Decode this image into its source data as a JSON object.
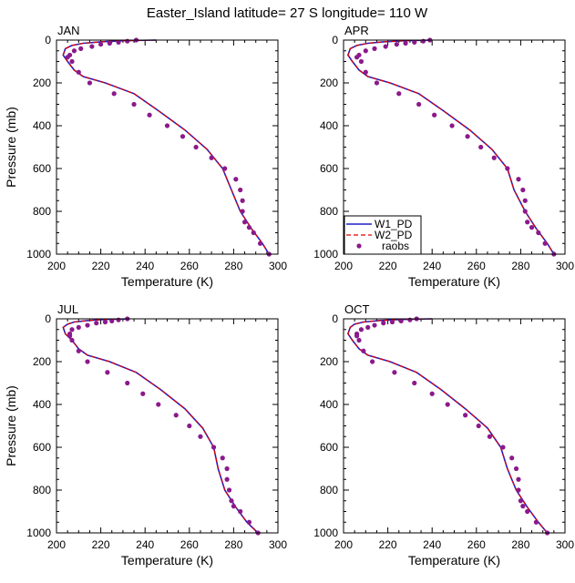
{
  "title": "Easter_Island  latitude= 27 S longitude= 110 W",
  "legend": {
    "w1": "W1_PD",
    "w2": "W2_PD",
    "obs": "raobs"
  },
  "colors": {
    "w1": "#1f1fc8",
    "w2": "#e00000",
    "obs": "#8b1a8b"
  },
  "chart_data": [
    {
      "type": "line",
      "title": "JAN",
      "xlabel": "Temperature (K)",
      "ylabel": "Pressure (mb)",
      "xlim": [
        200,
        300
      ],
      "ylim": [
        1000,
        0
      ],
      "xticks": [
        200,
        220,
        240,
        260,
        280,
        300
      ],
      "yticks": [
        0,
        200,
        400,
        600,
        800,
        1000
      ],
      "legend_shown": false,
      "series": [
        {
          "name": "W1_PD",
          "x": [
            245,
            230,
            220,
            212,
            207,
            204,
            203,
            205,
            208,
            212,
            222,
            235,
            246,
            258,
            268,
            275,
            279,
            283,
            288,
            293,
            296
          ],
          "p": [
            0,
            3,
            8,
            15,
            25,
            40,
            70,
            100,
            140,
            170,
            200,
            250,
            330,
            420,
            510,
            600,
            700,
            800,
            880,
            950,
            1000
          ]
        },
        {
          "name": "W2_PD",
          "x": [
            245,
            230,
            220,
            212,
            207,
            204,
            203,
            205,
            208,
            212,
            222,
            235,
            246,
            258,
            268,
            275,
            279,
            283,
            288,
            293,
            296
          ],
          "p": [
            0,
            3,
            8,
            15,
            25,
            40,
            70,
            100,
            140,
            170,
            200,
            250,
            330,
            420,
            510,
            600,
            700,
            800,
            880,
            950,
            1000
          ]
        },
        {
          "name": "raobs",
          "x": [
            236,
            232,
            228,
            224,
            220,
            216,
            211,
            208,
            206,
            205,
            207,
            210,
            215,
            226,
            235,
            242,
            250,
            257,
            263,
            270,
            276,
            281,
            283,
            284,
            284,
            285,
            287,
            289,
            292,
            296
          ],
          "p": [
            0,
            5,
            10,
            15,
            20,
            30,
            40,
            50,
            70,
            80,
            100,
            150,
            200,
            250,
            300,
            350,
            400,
            450,
            500,
            550,
            600,
            650,
            700,
            750,
            800,
            850,
            875,
            900,
            950,
            1000
          ]
        }
      ]
    },
    {
      "type": "line",
      "title": "APR",
      "xlabel": "Temperature (K)",
      "ylabel": "",
      "xlim": [
        200,
        300
      ],
      "ylim": [
        1000,
        0
      ],
      "xticks": [
        200,
        220,
        240,
        260,
        280,
        300
      ],
      "yticks": [
        0,
        200,
        400,
        600,
        800,
        1000
      ],
      "legend_shown": true,
      "series": [
        {
          "name": "W1_PD",
          "x": [
            240,
            228,
            218,
            211,
            206,
            203,
            202,
            204,
            207,
            211,
            221,
            234,
            245,
            257,
            267,
            274,
            277,
            282,
            287,
            292,
            295
          ],
          "p": [
            0,
            3,
            8,
            15,
            25,
            40,
            70,
            100,
            140,
            170,
            200,
            250,
            330,
            420,
            510,
            600,
            700,
            800,
            880,
            950,
            1000
          ]
        },
        {
          "name": "W2_PD",
          "x": [
            240,
            228,
            218,
            211,
            206,
            203,
            202,
            204,
            207,
            211,
            221,
            234,
            245,
            257,
            267,
            274,
            277,
            282,
            287,
            292,
            295
          ],
          "p": [
            0,
            3,
            8,
            15,
            25,
            40,
            70,
            100,
            140,
            170,
            200,
            250,
            330,
            420,
            510,
            600,
            700,
            800,
            880,
            950,
            1000
          ]
        },
        {
          "name": "raobs",
          "x": [
            239,
            236,
            232,
            228,
            224,
            219,
            214,
            210,
            207,
            206,
            208,
            210,
            215,
            225,
            234,
            241,
            249,
            256,
            262,
            268,
            274,
            279,
            281,
            282,
            282,
            283,
            285,
            288,
            291,
            295
          ],
          "p": [
            0,
            5,
            10,
            15,
            20,
            30,
            40,
            50,
            70,
            80,
            100,
            150,
            200,
            250,
            300,
            350,
            400,
            450,
            500,
            550,
            600,
            650,
            700,
            750,
            800,
            850,
            875,
            900,
            950,
            1000
          ]
        }
      ]
    },
    {
      "type": "line",
      "title": "JUL",
      "xlabel": "Temperature (K)",
      "ylabel": "Pressure (mb)",
      "xlim": [
        200,
        300
      ],
      "ylim": [
        1000,
        0
      ],
      "xticks": [
        200,
        220,
        240,
        260,
        280,
        300
      ],
      "yticks": [
        0,
        200,
        400,
        600,
        800,
        1000
      ],
      "legend_shown": false,
      "series": [
        {
          "name": "W1_PD",
          "x": [
            233,
            222,
            214,
            208,
            205,
            203,
            204,
            207,
            210,
            214,
            224,
            236,
            247,
            258,
            266,
            271,
            273,
            276,
            281,
            286,
            291
          ],
          "p": [
            0,
            3,
            8,
            15,
            25,
            40,
            70,
            100,
            140,
            170,
            200,
            250,
            330,
            420,
            510,
            600,
            700,
            800,
            880,
            950,
            1000
          ]
        },
        {
          "name": "W2_PD",
          "x": [
            233,
            222,
            214,
            208,
            205,
            203,
            204,
            207,
            210,
            214,
            224,
            236,
            247,
            258,
            266,
            271,
            273,
            276,
            281,
            286,
            291
          ],
          "p": [
            0,
            3,
            8,
            15,
            25,
            40,
            70,
            100,
            140,
            170,
            200,
            250,
            330,
            420,
            510,
            600,
            700,
            800,
            880,
            950,
            1000
          ]
        },
        {
          "name": "raobs",
          "x": [
            232,
            228,
            225,
            222,
            218,
            214,
            210,
            207,
            206,
            206,
            207,
            210,
            214,
            223,
            232,
            239,
            246,
            254,
            260,
            265,
            271,
            275,
            277,
            277,
            278,
            279,
            280,
            283,
            287,
            291
          ],
          "p": [
            0,
            5,
            10,
            15,
            20,
            30,
            40,
            50,
            70,
            80,
            100,
            150,
            200,
            250,
            300,
            350,
            400,
            450,
            500,
            550,
            600,
            650,
            700,
            750,
            800,
            850,
            875,
            900,
            950,
            1000
          ]
        }
      ]
    },
    {
      "type": "line",
      "title": "OCT",
      "xlabel": "Temperature (K)",
      "ylabel": "",
      "xlim": [
        200,
        300
      ],
      "ylim": [
        1000,
        0
      ],
      "xticks": [
        200,
        220,
        240,
        260,
        280,
        300
      ],
      "yticks": [
        0,
        200,
        400,
        600,
        800,
        1000
      ],
      "legend_shown": false,
      "series": [
        {
          "name": "W1_PD",
          "x": [
            240,
            226,
            216,
            209,
            205,
            203,
            202,
            204,
            207,
            211,
            221,
            233,
            244,
            255,
            265,
            271,
            274,
            278,
            283,
            288,
            292
          ],
          "p": [
            0,
            3,
            8,
            15,
            25,
            40,
            70,
            100,
            140,
            170,
            200,
            250,
            330,
            420,
            510,
            600,
            700,
            800,
            880,
            950,
            1000
          ]
        },
        {
          "name": "W2_PD",
          "x": [
            240,
            226,
            216,
            209,
            205,
            203,
            202,
            204,
            207,
            211,
            221,
            233,
            244,
            255,
            265,
            271,
            274,
            278,
            283,
            288,
            292
          ],
          "p": [
            0,
            3,
            8,
            15,
            25,
            40,
            70,
            100,
            140,
            170,
            200,
            250,
            330,
            420,
            510,
            600,
            700,
            800,
            880,
            950,
            1000
          ]
        },
        {
          "name": "raobs",
          "x": [
            233,
            230,
            226,
            222,
            218,
            214,
            211,
            208,
            206,
            206,
            207,
            209,
            213,
            223,
            232,
            240,
            247,
            255,
            261,
            266,
            272,
            276,
            278,
            279,
            279,
            280,
            281,
            283,
            287,
            292
          ],
          "p": [
            0,
            5,
            10,
            15,
            20,
            30,
            40,
            50,
            70,
            80,
            100,
            150,
            200,
            250,
            300,
            350,
            400,
            450,
            500,
            550,
            600,
            650,
            700,
            750,
            800,
            850,
            875,
            900,
            950,
            1000
          ]
        }
      ]
    }
  ]
}
